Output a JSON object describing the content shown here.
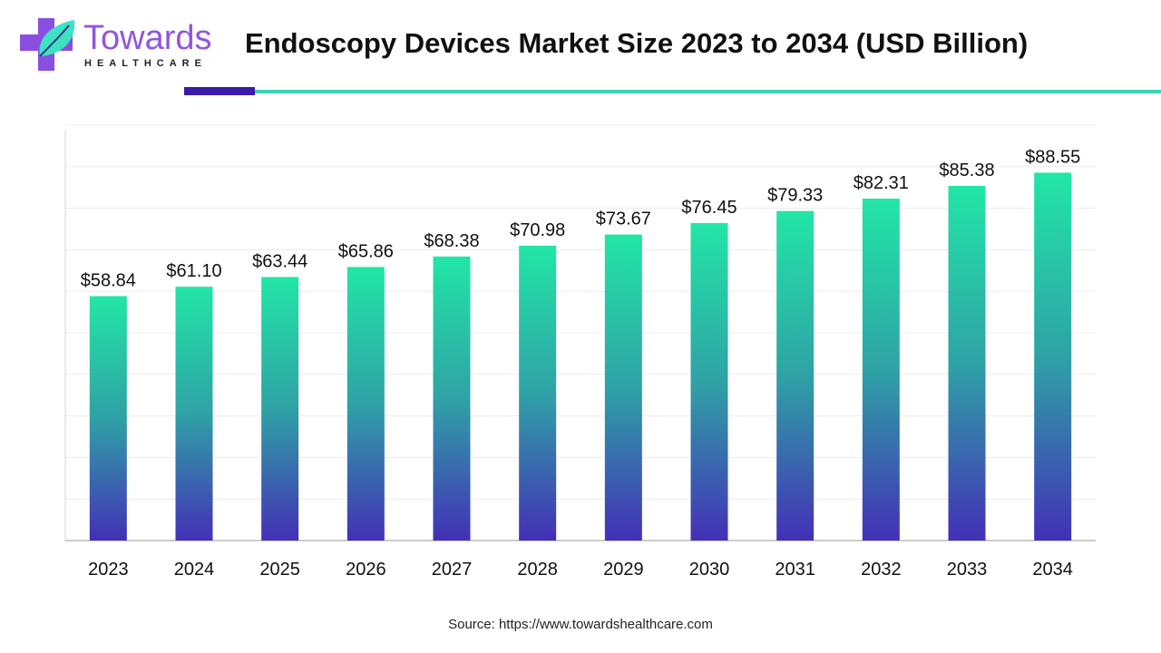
{
  "logo": {
    "word": "Towards",
    "sub": "HEALTHCARE"
  },
  "title": "Endoscopy Devices Market Size 2023 to 2034 (USD Billion)",
  "source": "Source: https://www.towardshealthcare.com",
  "colors": {
    "bar_top": "#22e6a6",
    "bar_bottom": "#4330b6",
    "accent_dark": "#3b1aa8",
    "accent_teal": "#3ad6b0"
  },
  "chart_data": {
    "type": "bar",
    "title": "Endoscopy Devices Market Size 2023 to 2034 (USD Billion)",
    "categories": [
      "2023",
      "2024",
      "2025",
      "2026",
      "2027",
      "2028",
      "2029",
      "2030",
      "2031",
      "2032",
      "2033",
      "2034"
    ],
    "values": [
      58.84,
      61.1,
      63.44,
      65.86,
      68.38,
      70.98,
      73.67,
      76.45,
      79.33,
      82.31,
      85.38,
      88.55
    ],
    "labels": [
      "$58.84",
      "$61.10",
      "$63.44",
      "$65.86",
      "$68.38",
      "$70.98",
      "$73.67",
      "$76.45",
      "$79.33",
      "$82.31",
      "$85.38",
      "$88.55"
    ],
    "ylim": [
      0,
      100
    ],
    "grid": true,
    "xlabel": "",
    "ylabel": ""
  }
}
